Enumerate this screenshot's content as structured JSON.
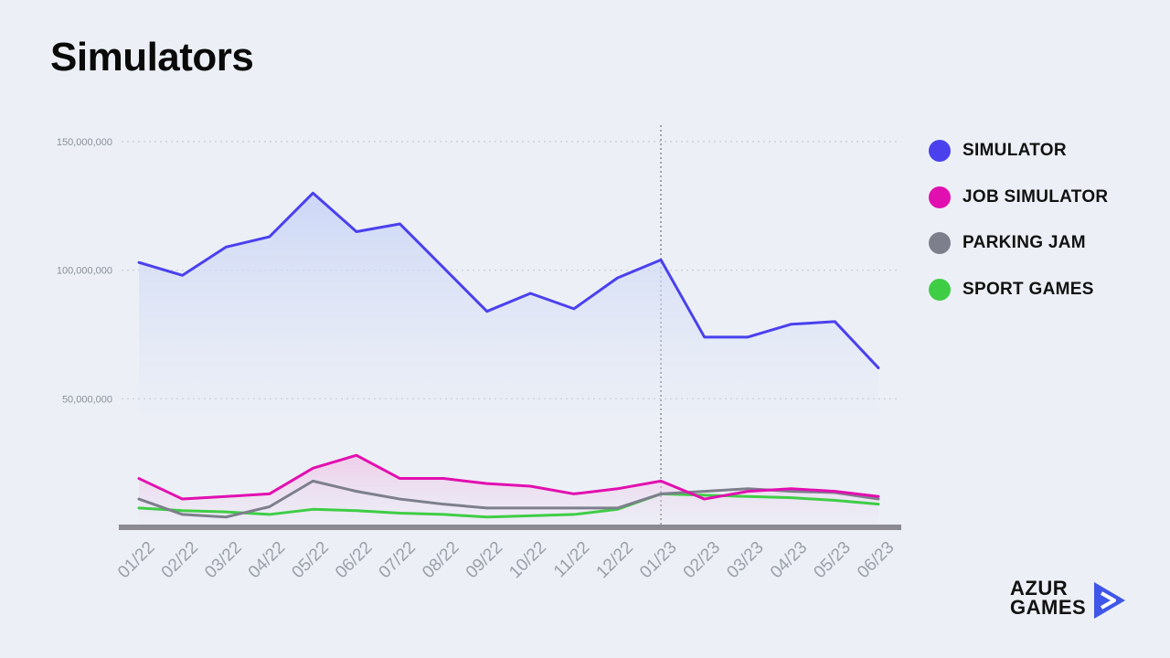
{
  "page": {
    "title": "Simulators"
  },
  "logo": {
    "line1": "AZUR",
    "line2": "GAMES",
    "icon": "play-arrow-icon"
  },
  "colors": {
    "background": "#ecf0f6",
    "simulator": "#4a40ee",
    "job_simulator": "#e20fb0",
    "parking_jam": "#7d7f8c",
    "sport_games": "#3fcd45",
    "logo_accent": "#3f56e8"
  },
  "chart_data": {
    "type": "line",
    "title": "Simulators",
    "xlabel": "",
    "ylabel": "",
    "ylim": [
      0,
      150000000
    ],
    "yticks": [
      50000000,
      100000000,
      150000000
    ],
    "ytick_labels": [
      "50,000,000",
      "100,000,000",
      "150,000,000"
    ],
    "categories": [
      "01/22",
      "02/22",
      "03/22",
      "04/22",
      "05/22",
      "06/22",
      "07/22",
      "08/22",
      "09/22",
      "10/22",
      "11/22",
      "12/22",
      "01/23",
      "02/23",
      "03/23",
      "04/23",
      "05/23",
      "06/23"
    ],
    "grid": true,
    "legend": "right",
    "vertical_marker": "01/23",
    "series": [
      {
        "name": "SIMULATOR",
        "color": "#4a40ee",
        "values": [
          103000000,
          98000000,
          109000000,
          113000000,
          130000000,
          115000000,
          118000000,
          101000000,
          84000000,
          91000000,
          85000000,
          97000000,
          104000000,
          74000000,
          74000000,
          79000000,
          80000000,
          62000000
        ]
      },
      {
        "name": "JOB SIMULATOR",
        "color": "#e20fb0",
        "values": [
          19000000,
          11000000,
          12000000,
          13000000,
          23000000,
          28000000,
          19000000,
          19000000,
          17000000,
          16000000,
          13000000,
          15000000,
          18000000,
          11000000,
          14000000,
          15000000,
          14000000,
          12000000
        ]
      },
      {
        "name": "PARKING JAM",
        "color": "#7d7f8c",
        "values": [
          11000000,
          5000000,
          4000000,
          8000000,
          18000000,
          14000000,
          11000000,
          9000000,
          7500000,
          7500000,
          7500000,
          7500000,
          13000000,
          14000000,
          15000000,
          14000000,
          13500000,
          11000000
        ]
      },
      {
        "name": "SPORT GAMES",
        "color": "#3fcd45",
        "values": [
          7500000,
          6500000,
          6000000,
          5000000,
          7000000,
          6500000,
          5500000,
          5000000,
          4000000,
          4500000,
          5000000,
          7000000,
          13000000,
          12500000,
          12000000,
          11500000,
          10500000,
          9000000
        ]
      }
    ]
  }
}
